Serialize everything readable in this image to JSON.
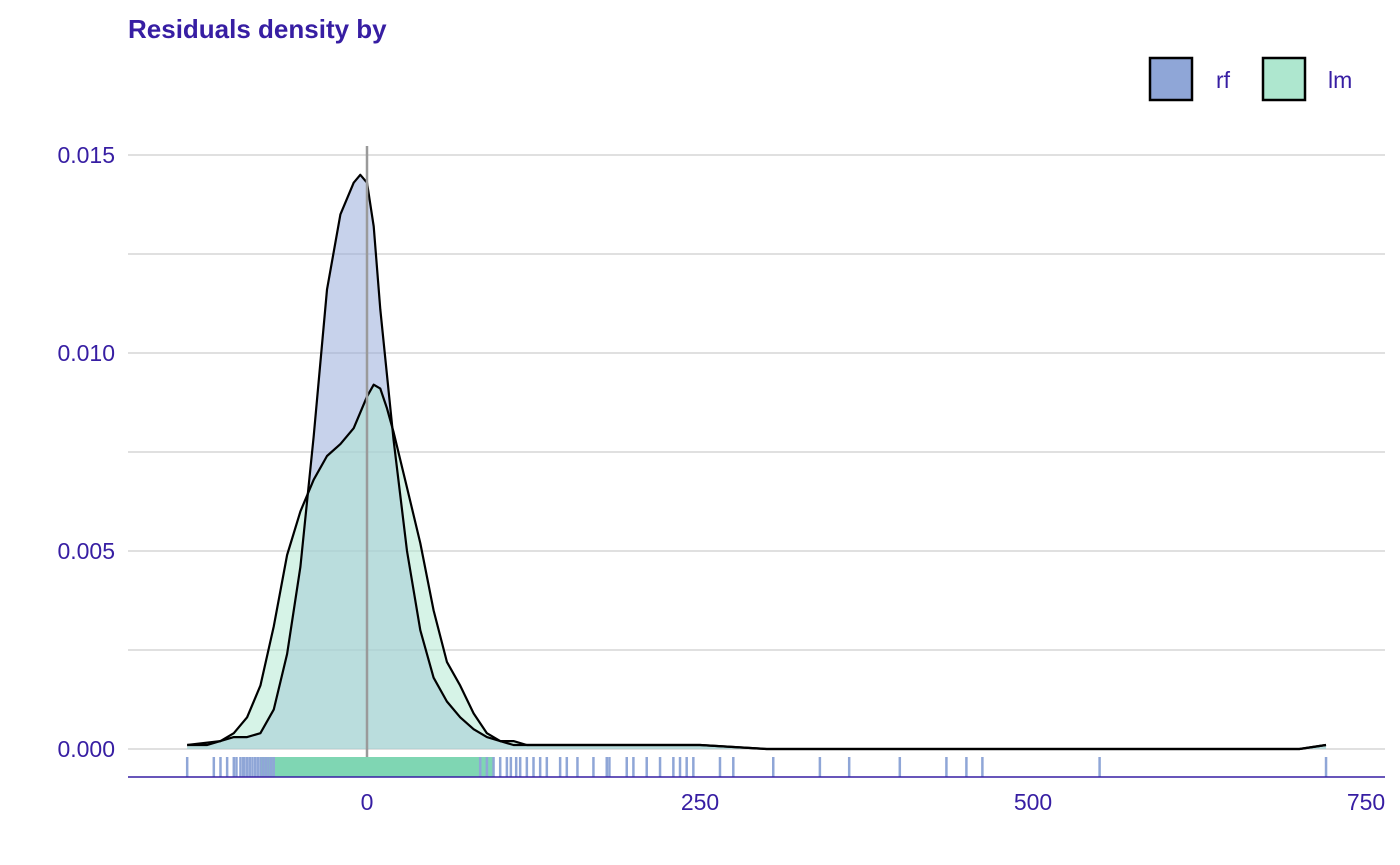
{
  "colors": {
    "text": "#371ea3",
    "grid": "#e0e0e0",
    "zero_line": "#9a9a9a",
    "rf": "#8fa6d7",
    "lm": "#aee7cf",
    "rf_rug": "#8fa6d7",
    "lm_rug": "#7fd6b3"
  },
  "chart_data": {
    "type": "area",
    "title": "Residuals density by",
    "xlabel": "",
    "ylabel": "",
    "xlim": [
      -90,
      760
    ],
    "ylim": [
      0,
      0.0155
    ],
    "x_ticks": [
      0,
      250,
      500,
      750
    ],
    "x_tick_labels": [
      "0",
      "250",
      "500",
      "750"
    ],
    "y_ticks": [
      0.0,
      0.005,
      0.01,
      0.015
    ],
    "y_tick_labels": [
      "0.000",
      "0.005",
      "0.010",
      "0.015"
    ],
    "grid": true,
    "legend_position": "top-right",
    "vertical_reference_line": 0,
    "series": [
      {
        "name": "rf",
        "color": "#8fa6d7",
        "x": [
          -135,
          -120,
          -100,
          -90,
          -80,
          -70,
          -60,
          -50,
          -40,
          -30,
          -20,
          -10,
          -5,
          0,
          5,
          10,
          20,
          30,
          40,
          50,
          60,
          70,
          80,
          90,
          100,
          110,
          120,
          150,
          180,
          200,
          250,
          300,
          350,
          400,
          450,
          500,
          550,
          600,
          650,
          700,
          720
        ],
        "y": [
          0.0001,
          0.0001,
          0.0003,
          0.0003,
          0.0004,
          0.001,
          0.0024,
          0.0046,
          0.0079,
          0.0116,
          0.0135,
          0.0143,
          0.0145,
          0.0143,
          0.0132,
          0.0111,
          0.0078,
          0.005,
          0.003,
          0.0018,
          0.0012,
          0.0008,
          0.0005,
          0.0003,
          0.0002,
          0.0001,
          0.0001,
          0.0001,
          0.0001,
          0.0001,
          0.0001,
          0.0,
          0.0,
          0.0,
          0.0,
          0.0,
          0.0,
          0.0,
          0.0,
          0.0,
          0.0001
        ]
      },
      {
        "name": "lm",
        "color": "#aee7cf",
        "x": [
          -135,
          -110,
          -100,
          -90,
          -80,
          -70,
          -60,
          -50,
          -40,
          -30,
          -20,
          -10,
          0,
          5,
          10,
          15,
          20,
          30,
          40,
          50,
          60,
          70,
          80,
          90,
          100,
          110,
          120,
          150,
          200,
          250,
          300,
          400,
          500,
          600,
          700,
          720
        ],
        "y": [
          0.0001,
          0.0002,
          0.0004,
          0.0008,
          0.0016,
          0.0031,
          0.0049,
          0.006,
          0.0068,
          0.0074,
          0.0077,
          0.0081,
          0.0089,
          0.0092,
          0.0091,
          0.0086,
          0.008,
          0.0066,
          0.0052,
          0.0035,
          0.0022,
          0.0016,
          0.0009,
          0.0004,
          0.0002,
          0.0002,
          0.0001,
          0.0001,
          0.0001,
          0.0001,
          0.0,
          0.0,
          0.0,
          0.0,
          0.0,
          0.0001
        ]
      }
    ],
    "rug": {
      "rf": [
        -135,
        -115,
        -110,
        -105,
        -100,
        -98,
        -95,
        -93,
        -92,
        -90,
        -88,
        -86,
        -84,
        -82,
        -80,
        -78,
        -76,
        -74,
        -72,
        -70,
        85,
        90,
        95,
        100,
        105,
        108,
        112,
        115,
        120,
        125,
        130,
        135,
        145,
        150,
        158,
        170,
        180,
        182,
        195,
        200,
        210,
        220,
        230,
        235,
        240,
        245,
        265,
        275,
        305,
        340,
        362,
        400,
        435,
        450,
        462,
        550,
        720
      ],
      "lm_range": [
        -80,
        95
      ]
    }
  }
}
